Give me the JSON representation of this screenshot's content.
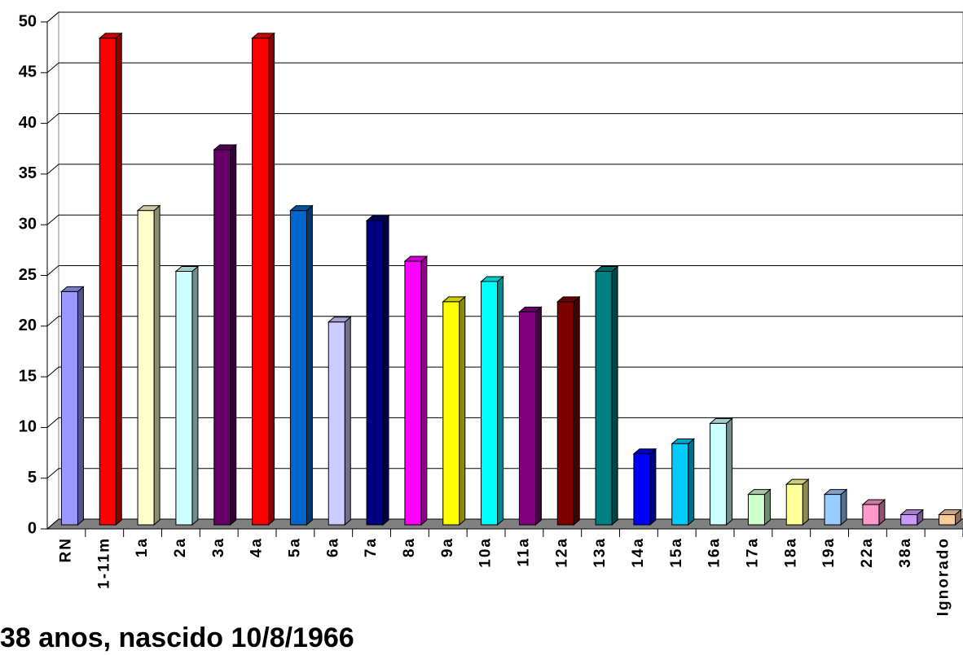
{
  "chart_data": {
    "type": "bar3d",
    "categories": [
      "RN",
      "1-11m",
      "1a",
      "2a",
      "3a",
      "4a",
      "5a",
      "6a",
      "7a",
      "8a",
      "9a",
      "10a",
      "11a",
      "12a",
      "13a",
      "14a",
      "15a",
      "16a",
      "17a",
      "18a",
      "19a",
      "22a",
      "38a",
      "Ignorado"
    ],
    "values": [
      23,
      48,
      31,
      25,
      37,
      48,
      31,
      20,
      30,
      26,
      22,
      24,
      21,
      22,
      25,
      7,
      8,
      10,
      3,
      4,
      3,
      2,
      1,
      1
    ],
    "colors": [
      "#9999ff",
      "#ff0000",
      "#ffffcc",
      "#ccffff",
      "#660066",
      "#ff0000",
      "#0066cc",
      "#ccccff",
      "#000080",
      "#ff00ff",
      "#ffff00",
      "#00ffff",
      "#800080",
      "#800000",
      "#008080",
      "#0000ff",
      "#00ccff",
      "#ccffff",
      "#ccffcc",
      "#ffff99",
      "#99ccff",
      "#ff99cc",
      "#cc99ff",
      "#ffcc99"
    ],
    "ylim": [
      0,
      50
    ],
    "yticks": [
      0,
      5,
      10,
      15,
      20,
      25,
      30,
      35,
      40,
      45,
      50
    ],
    "grid": true,
    "annotation": "38 anos, nascido 10/8/1966"
  }
}
